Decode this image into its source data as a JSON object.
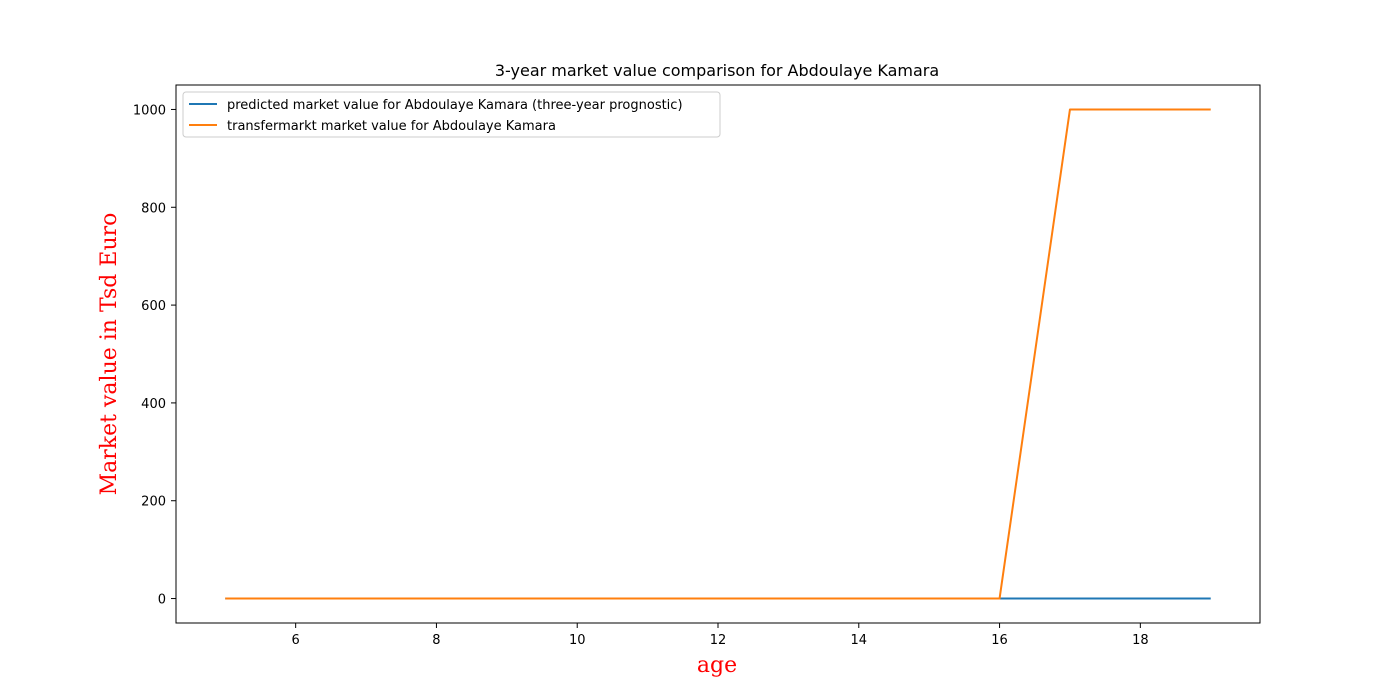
{
  "chart_data": {
    "type": "line",
    "title": "3-year market value comparison for Abdoulaye Kamara",
    "xlabel": "age",
    "ylabel": "Market value in Tsd Euro",
    "xlim": [
      4.3,
      19.7
    ],
    "ylim": [
      -50,
      1050
    ],
    "xticks": [
      6,
      8,
      10,
      12,
      14,
      16,
      18
    ],
    "yticks": [
      0,
      200,
      400,
      600,
      800,
      1000
    ],
    "grid": false,
    "legend_position": "top-left",
    "axis_label_color": "#ff0000",
    "series": [
      {
        "name": "predicted market value for Abdoulaye Kamara (three-year prognostic)",
        "color": "#1f77b4",
        "x": [
          5,
          6,
          7,
          8,
          9,
          10,
          11,
          12,
          13,
          14,
          15,
          16,
          17,
          18,
          19
        ],
        "y": [
          0,
          0,
          0,
          0,
          0,
          0,
          0,
          0,
          0,
          0,
          0,
          0,
          0,
          0,
          0
        ]
      },
      {
        "name": "transfermarkt market value for Abdoulaye Kamara",
        "color": "#ff7f0e",
        "x": [
          5,
          6,
          7,
          8,
          9,
          10,
          11,
          12,
          13,
          14,
          15,
          16,
          17,
          18,
          19
        ],
        "y": [
          0,
          0,
          0,
          0,
          0,
          0,
          0,
          0,
          0,
          0,
          0,
          0,
          1000,
          1000,
          1000
        ]
      }
    ]
  }
}
